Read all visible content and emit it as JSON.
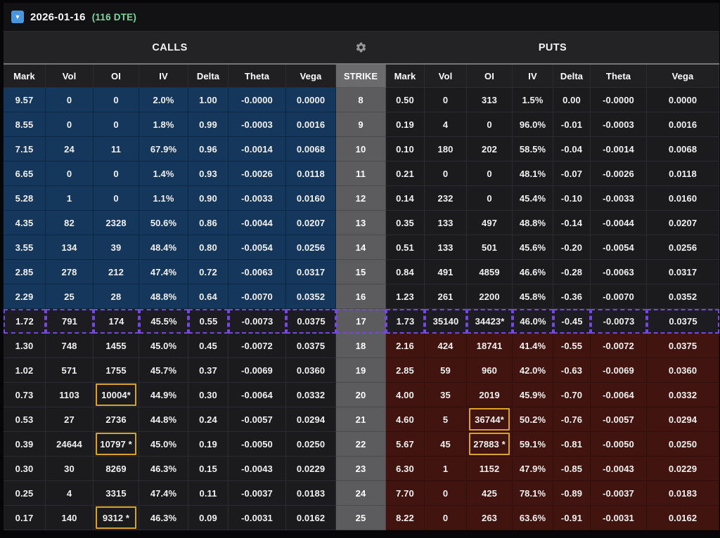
{
  "topbar": {
    "expiry_date": "2026-01-16",
    "dte": "(116 DTE)",
    "collapse_glyph": "▼"
  },
  "colors": {
    "accent_highlight": "#7748dd",
    "oi_box_gold": "#d9a32b",
    "call_itm_blue": "#16375c",
    "put_itm_red": "#421410",
    "strike_gray": "#5c5c5e",
    "dte_green": "#7fd7a0",
    "collapse_icon_blue": "#4a96dd"
  },
  "table": {
    "calls_label": "CALLS",
    "puts_label": "PUTS",
    "strike_label": "STRIKE",
    "columns": [
      "Mark",
      "Vol",
      "OI",
      "IV",
      "Delta",
      "Theta",
      "Vega"
    ],
    "rows": [
      {
        "strike": "8",
        "calls": [
          "9.57",
          "0",
          "0",
          "2.0%",
          "1.00",
          "-0.0000",
          "0.0000"
        ],
        "puts": [
          "0.50",
          "0",
          "313",
          "1.5%",
          "0.00",
          "-0.0000",
          "0.0000"
        ],
        "call_zone": "itm",
        "put_zone": "otm",
        "highlight": false,
        "call_oi_box": false,
        "put_oi_box": false
      },
      {
        "strike": "9",
        "calls": [
          "8.55",
          "0",
          "0",
          "1.8%",
          "0.99",
          "-0.0003",
          "0.0016"
        ],
        "puts": [
          "0.19",
          "4",
          "0",
          "96.0%",
          "-0.01",
          "-0.0003",
          "0.0016"
        ],
        "call_zone": "itm",
        "put_zone": "otm",
        "highlight": false,
        "call_oi_box": false,
        "put_oi_box": false
      },
      {
        "strike": "10",
        "calls": [
          "7.15",
          "24",
          "11",
          "67.9%",
          "0.96",
          "-0.0014",
          "0.0068"
        ],
        "puts": [
          "0.10",
          "180",
          "202",
          "58.5%",
          "-0.04",
          "-0.0014",
          "0.0068"
        ],
        "call_zone": "itm",
        "put_zone": "otm",
        "highlight": false,
        "call_oi_box": false,
        "put_oi_box": false
      },
      {
        "strike": "11",
        "calls": [
          "6.65",
          "0",
          "0",
          "1.4%",
          "0.93",
          "-0.0026",
          "0.0118"
        ],
        "puts": [
          "0.21",
          "0",
          "0",
          "48.1%",
          "-0.07",
          "-0.0026",
          "0.0118"
        ],
        "call_zone": "itm",
        "put_zone": "otm",
        "highlight": false,
        "call_oi_box": false,
        "put_oi_box": false
      },
      {
        "strike": "12",
        "calls": [
          "5.28",
          "1",
          "0",
          "1.1%",
          "0.90",
          "-0.0033",
          "0.0160"
        ],
        "puts": [
          "0.14",
          "232",
          "0",
          "45.4%",
          "-0.10",
          "-0.0033",
          "0.0160"
        ],
        "call_zone": "itm",
        "put_zone": "otm",
        "highlight": false,
        "call_oi_box": false,
        "put_oi_box": false
      },
      {
        "strike": "13",
        "calls": [
          "4.35",
          "82",
          "2328",
          "50.6%",
          "0.86",
          "-0.0044",
          "0.0207"
        ],
        "puts": [
          "0.35",
          "133",
          "497",
          "48.8%",
          "-0.14",
          "-0.0044",
          "0.0207"
        ],
        "call_zone": "itm",
        "put_zone": "otm",
        "highlight": false,
        "call_oi_box": false,
        "put_oi_box": false
      },
      {
        "strike": "14",
        "calls": [
          "3.55",
          "134",
          "39",
          "48.4%",
          "0.80",
          "-0.0054",
          "0.0256"
        ],
        "puts": [
          "0.51",
          "133",
          "501",
          "45.6%",
          "-0.20",
          "-0.0054",
          "0.0256"
        ],
        "call_zone": "itm",
        "put_zone": "otm",
        "highlight": false,
        "call_oi_box": false,
        "put_oi_box": false
      },
      {
        "strike": "15",
        "calls": [
          "2.85",
          "278",
          "212",
          "47.4%",
          "0.72",
          "-0.0063",
          "0.0317"
        ],
        "puts": [
          "0.84",
          "491",
          "4859",
          "46.6%",
          "-0.28",
          "-0.0063",
          "0.0317"
        ],
        "call_zone": "itm",
        "put_zone": "otm",
        "highlight": false,
        "call_oi_box": false,
        "put_oi_box": false
      },
      {
        "strike": "16",
        "calls": [
          "2.29",
          "25",
          "28",
          "48.8%",
          "0.64",
          "-0.0070",
          "0.0352"
        ],
        "puts": [
          "1.23",
          "261",
          "2200",
          "45.8%",
          "-0.36",
          "-0.0070",
          "0.0352"
        ],
        "call_zone": "itm",
        "put_zone": "otm",
        "highlight": false,
        "call_oi_box": false,
        "put_oi_box": false
      },
      {
        "strike": "17",
        "calls": [
          "1.72",
          "791",
          "174",
          "45.5%",
          "0.55",
          "-0.0073",
          "0.0375"
        ],
        "puts": [
          "1.73",
          "35140",
          "34423*",
          "46.0%",
          "-0.45",
          "-0.0073",
          "0.0375"
        ],
        "call_zone": "otm",
        "put_zone": "otm",
        "highlight": true,
        "call_oi_box": false,
        "put_oi_box": false
      },
      {
        "strike": "18",
        "calls": [
          "1.30",
          "748",
          "1455",
          "45.0%",
          "0.45",
          "-0.0072",
          "0.0375"
        ],
        "puts": [
          "2.16",
          "424",
          "18741",
          "41.4%",
          "-0.55",
          "-0.0072",
          "0.0375"
        ],
        "call_zone": "otm",
        "put_zone": "itm",
        "highlight": false,
        "call_oi_box": false,
        "put_oi_box": false
      },
      {
        "strike": "19",
        "calls": [
          "1.02",
          "571",
          "1755",
          "45.7%",
          "0.37",
          "-0.0069",
          "0.0360"
        ],
        "puts": [
          "2.85",
          "59",
          "960",
          "42.0%",
          "-0.63",
          "-0.0069",
          "0.0360"
        ],
        "call_zone": "otm",
        "put_zone": "itm",
        "highlight": false,
        "call_oi_box": false,
        "put_oi_box": false
      },
      {
        "strike": "20",
        "calls": [
          "0.73",
          "1103",
          "10004*",
          "44.9%",
          "0.30",
          "-0.0064",
          "0.0332"
        ],
        "puts": [
          "4.00",
          "35",
          "2019",
          "45.9%",
          "-0.70",
          "-0.0064",
          "0.0332"
        ],
        "call_zone": "otm",
        "put_zone": "itm",
        "highlight": false,
        "call_oi_box": true,
        "put_oi_box": false
      },
      {
        "strike": "21",
        "calls": [
          "0.53",
          "27",
          "2736",
          "44.8%",
          "0.24",
          "-0.0057",
          "0.0294"
        ],
        "puts": [
          "4.60",
          "5",
          "36744*",
          "50.2%",
          "-0.76",
          "-0.0057",
          "0.0294"
        ],
        "call_zone": "otm",
        "put_zone": "itm",
        "highlight": false,
        "call_oi_box": false,
        "put_oi_box": true
      },
      {
        "strike": "22",
        "calls": [
          "0.39",
          "24644",
          "10797 *",
          "45.0%",
          "0.19",
          "-0.0050",
          "0.0250"
        ],
        "puts": [
          "5.67",
          "45",
          "27883 *",
          "59.1%",
          "-0.81",
          "-0.0050",
          "0.0250"
        ],
        "call_zone": "otm",
        "put_zone": "itm",
        "highlight": false,
        "call_oi_box": true,
        "put_oi_box": true
      },
      {
        "strike": "23",
        "calls": [
          "0.30",
          "30",
          "8269",
          "46.3%",
          "0.15",
          "-0.0043",
          "0.0229"
        ],
        "puts": [
          "6.30",
          "1",
          "1152",
          "47.9%",
          "-0.85",
          "-0.0043",
          "0.0229"
        ],
        "call_zone": "otm",
        "put_zone": "itm",
        "highlight": false,
        "call_oi_box": false,
        "put_oi_box": false
      },
      {
        "strike": "24",
        "calls": [
          "0.25",
          "4",
          "3315",
          "47.4%",
          "0.11",
          "-0.0037",
          "0.0183"
        ],
        "puts": [
          "7.70",
          "0",
          "425",
          "78.1%",
          "-0.89",
          "-0.0037",
          "0.0183"
        ],
        "call_zone": "otm",
        "put_zone": "itm",
        "highlight": false,
        "call_oi_box": false,
        "put_oi_box": false
      },
      {
        "strike": "25",
        "calls": [
          "0.17",
          "140",
          "9312 *",
          "46.3%",
          "0.09",
          "-0.0031",
          "0.0162"
        ],
        "puts": [
          "8.22",
          "0",
          "263",
          "63.6%",
          "-0.91",
          "-0.0031",
          "0.0162"
        ],
        "call_zone": "otm",
        "put_zone": "itm",
        "highlight": false,
        "call_oi_box": true,
        "put_oi_box": false
      }
    ]
  }
}
